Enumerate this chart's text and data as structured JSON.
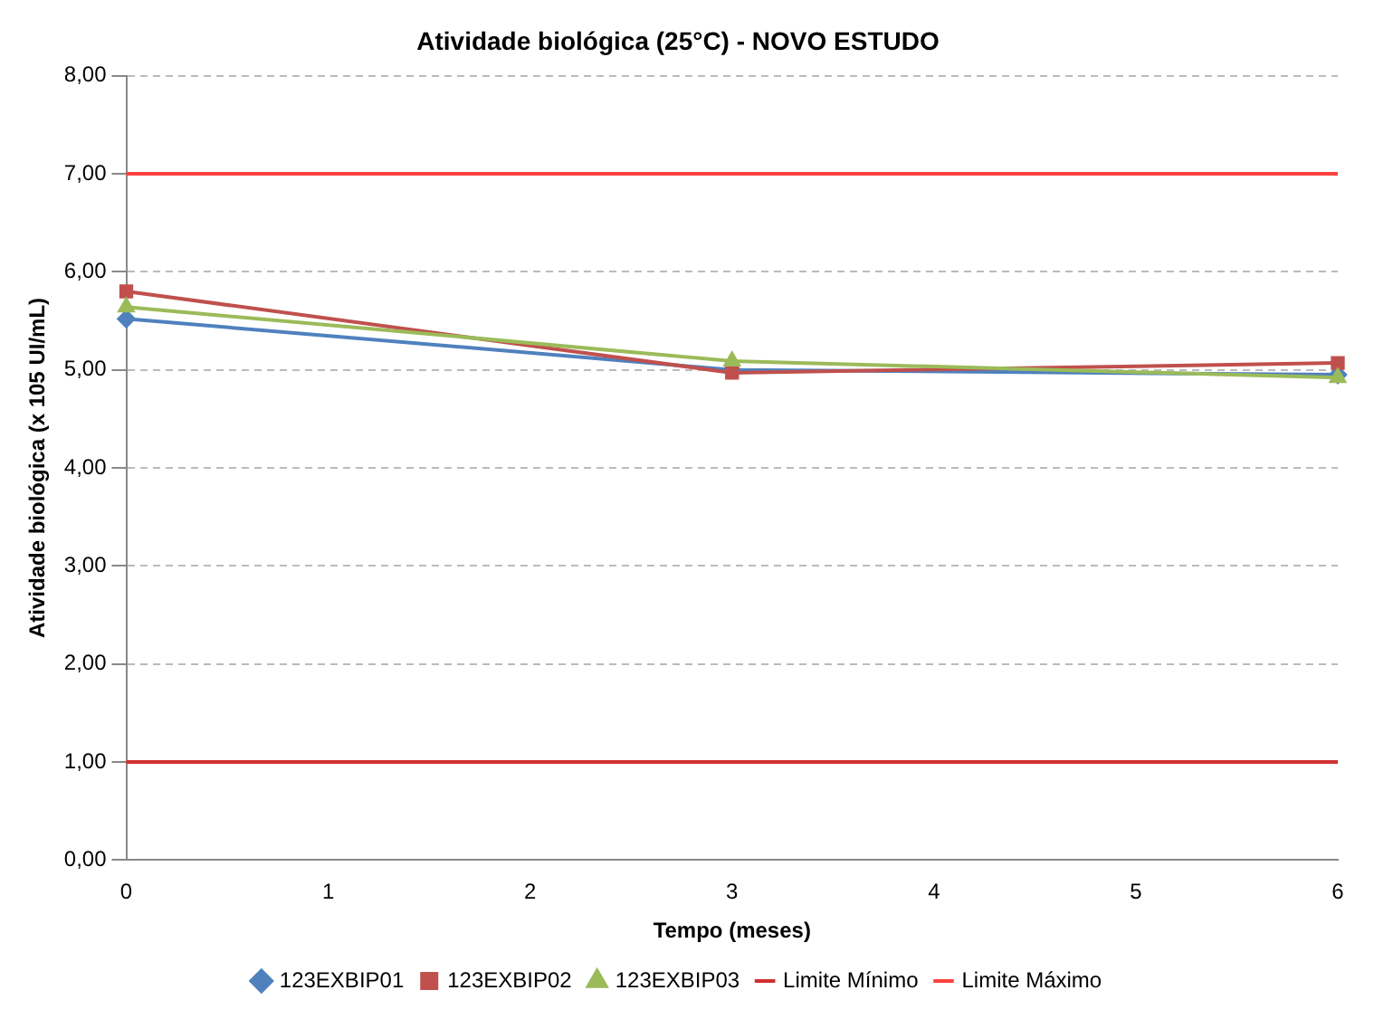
{
  "chart_data": {
    "type": "line",
    "title": "Atividade biológica (25°C) - NOVO ESTUDO",
    "xlabel": "Tempo (meses)",
    "ylabel": "Atividade biológica (x 105 UI/mL)",
    "x": [
      0,
      3,
      6
    ],
    "series": [
      {
        "name": "123EXBIP01",
        "color": "#4f81bd",
        "marker": "diamond",
        "values": [
          5.52,
          5.0,
          4.95
        ]
      },
      {
        "name": "123EXBIP02",
        "color": "#c0504d",
        "marker": "square",
        "values": [
          5.8,
          4.97,
          5.07
        ]
      },
      {
        "name": "123EXBIP03",
        "color": "#9bbb59",
        "marker": "triangle",
        "values": [
          5.64,
          5.09,
          4.92
        ]
      },
      {
        "name": "Limite Mínimo",
        "color": "#d03030",
        "marker": "none",
        "values": [
          1,
          1,
          1
        ]
      },
      {
        "name": "Limite Máximo",
        "color": "#ff4040",
        "marker": "none",
        "values": [
          7,
          7,
          7
        ]
      }
    ],
    "xlim": [
      0,
      6
    ],
    "xticks": [
      0,
      1,
      2,
      3,
      4,
      5,
      6
    ],
    "ylim": [
      0,
      8
    ],
    "yticks": [
      {
        "value": 0,
        "label": "0,00"
      },
      {
        "value": 1,
        "label": "1,00"
      },
      {
        "value": 2,
        "label": "2,00"
      },
      {
        "value": 3,
        "label": "3,00"
      },
      {
        "value": 4,
        "label": "4,00"
      },
      {
        "value": 5,
        "label": "5,00"
      },
      {
        "value": 6,
        "label": "6,00"
      },
      {
        "value": 7,
        "label": "7,00"
      },
      {
        "value": 8,
        "label": "8,00"
      }
    ],
    "grid": "y",
    "legend": "bottom",
    "line_style": "solid"
  }
}
